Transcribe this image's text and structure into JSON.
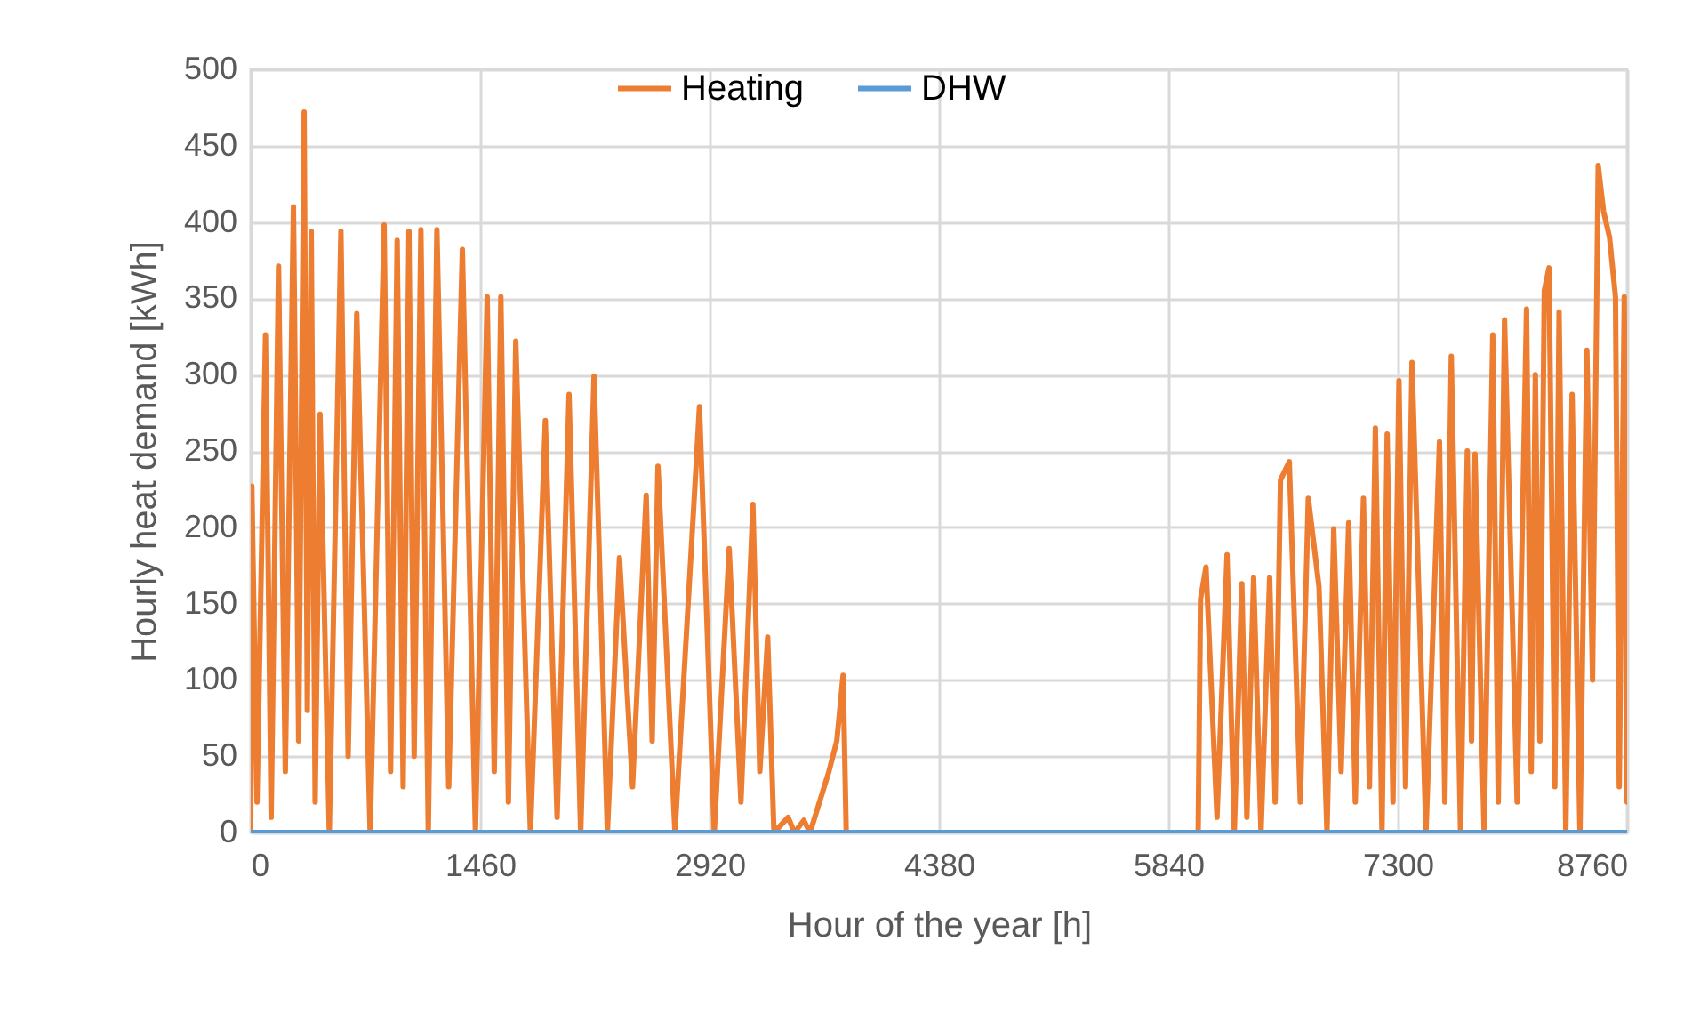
{
  "chart_data": {
    "type": "line",
    "xlabel": "Hour of the year [h]",
    "ylabel": "Hourly heat demand  [kWh]",
    "xlim": [
      0,
      8760
    ],
    "xticks": [
      0,
      1460,
      2920,
      4380,
      5840,
      7300,
      8760
    ],
    "ylim": [
      0,
      500
    ],
    "yticks": [
      0,
      50,
      100,
      150,
      200,
      250,
      300,
      350,
      400,
      450,
      500
    ],
    "grid": true,
    "legend": "top",
    "line_style": "solid",
    "marker": "none",
    "series": [
      {
        "name": "Heating",
        "color": "#ed7d31",
        "x": [
          0,
          7,
          40,
          94,
          130,
          177,
          220,
          272,
          305,
          340,
          360,
          385,
          410,
          441,
          500,
          574,
          620,
          675,
          760,
          849,
          890,
          932,
          970,
          1007,
          1040,
          1083,
          1130,
          1185,
          1260,
          1347,
          1430,
          1505,
          1550,
          1592,
          1640,
          1687,
          1780,
          1875,
          1950,
          2026,
          2100,
          2185,
          2270,
          2347,
          2430,
          2517,
          2555,
          2592,
          2700,
          2856,
          2950,
          3045,
          3120,
          3196,
          3240,
          3290,
          3330,
          3420,
          3460,
          3520,
          3560,
          3680,
          3730,
          3770,
          3790,
          6030,
          6045,
          6080,
          6150,
          6214,
          6260,
          6308,
          6340,
          6383,
          6430,
          6485,
          6520,
          6554,
          6610,
          6680,
          6731,
          6799,
          6850,
          6893,
          6940,
          6988,
          7030,
          7082,
          7120,
          7158,
          7200,
          7233,
          7270,
          7308,
          7350,
          7391,
          7480,
          7566,
          7600,
          7641,
          7700,
          7743,
          7770,
          7792,
          7850,
          7905,
          7940,
          7980,
          8060,
          8120,
          8150,
          8176,
          8205,
          8233,
          8263,
          8300,
          8327,
          8370,
          8410,
          8460,
          8504,
          8540,
          8576,
          8610,
          8648,
          8686,
          8710,
          8742,
          8760
        ],
        "values": [
          0,
          227,
          20,
          326,
          10,
          371,
          40,
          410,
          60,
          472,
          80,
          394,
          20,
          274,
          0,
          394,
          50,
          340,
          0,
          398,
          40,
          388,
          30,
          394,
          50,
          395,
          0,
          395,
          30,
          382,
          0,
          351,
          40,
          351,
          20,
          322,
          0,
          270,
          10,
          287,
          0,
          299,
          0,
          180,
          30,
          221,
          60,
          240,
          0,
          279,
          0,
          186,
          20,
          215,
          40,
          128,
          0,
          10,
          0,
          8,
          0,
          40,
          60,
          103,
          0,
          0,
          153,
          174,
          10,
          182,
          0,
          163,
          10,
          167,
          0,
          167,
          20,
          231,
          243,
          20,
          219,
          161,
          0,
          199,
          40,
          203,
          20,
          219,
          30,
          265,
          0,
          261,
          20,
          296,
          30,
          308,
          0,
          256,
          20,
          312,
          0,
          250,
          60,
          248,
          0,
          326,
          20,
          336,
          20,
          343,
          40,
          300,
          60,
          355,
          370,
          30,
          341,
          0,
          287,
          0,
          316,
          100,
          437,
          407,
          390,
          351,
          30,
          351,
          20
        ]
      },
      {
        "name": "DHW",
        "color": "#5b9bd5",
        "x": [
          0,
          8760
        ],
        "values": [
          0,
          0
        ]
      }
    ]
  }
}
